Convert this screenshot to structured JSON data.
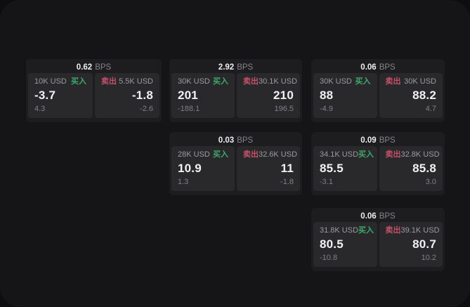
{
  "labels": {
    "bps_unit": "BPS",
    "buy": "买入",
    "sell": "卖出"
  },
  "colors": {
    "buy_green": "#3da96b",
    "sell_red": "#c6506a",
    "surface_bg": "#151517",
    "card_bg": "#1d1d1f",
    "panel_bg": "#29292c",
    "value_white": "#f1f1f2",
    "label_gray": "#9b9ba0",
    "sub_gray": "#808085"
  },
  "cards": [
    {
      "bps": "0.62",
      "buy": {
        "amount": "10K USD",
        "value": "-3.7",
        "sub": "4.3"
      },
      "sell": {
        "amount": "5.5K USD",
        "value": "-1.8",
        "sub": "-2.6"
      }
    },
    {
      "bps": "2.92",
      "buy": {
        "amount": "30K USD",
        "value": "201",
        "sub": "-188.1"
      },
      "sell": {
        "amount": "30.1K USD",
        "value": "210",
        "sub": "196.5"
      }
    },
    {
      "bps": "0.06",
      "buy": {
        "amount": "30K USD",
        "value": "88",
        "sub": "-4.9"
      },
      "sell": {
        "amount": "30K USD",
        "value": "88.2",
        "sub": "4.7"
      }
    },
    {
      "bps": "0.03",
      "buy": {
        "amount": "28K USD",
        "value": "10.9",
        "sub": "1.3"
      },
      "sell": {
        "amount": "32.6K USD",
        "value": "11",
        "sub": "-1.8"
      }
    },
    {
      "bps": "0.09",
      "buy": {
        "amount": "34.1K USD",
        "value": "85.5",
        "sub": "-3.1"
      },
      "sell": {
        "amount": "32.8K USD",
        "value": "85.8",
        "sub": "3.0"
      }
    },
    {
      "bps": "0.06",
      "buy": {
        "amount": "31.8K USD",
        "value": "80.5",
        "sub": "-10.8"
      },
      "sell": {
        "amount": "39.1K USD",
        "value": "80.7",
        "sub": "10.2"
      }
    }
  ]
}
